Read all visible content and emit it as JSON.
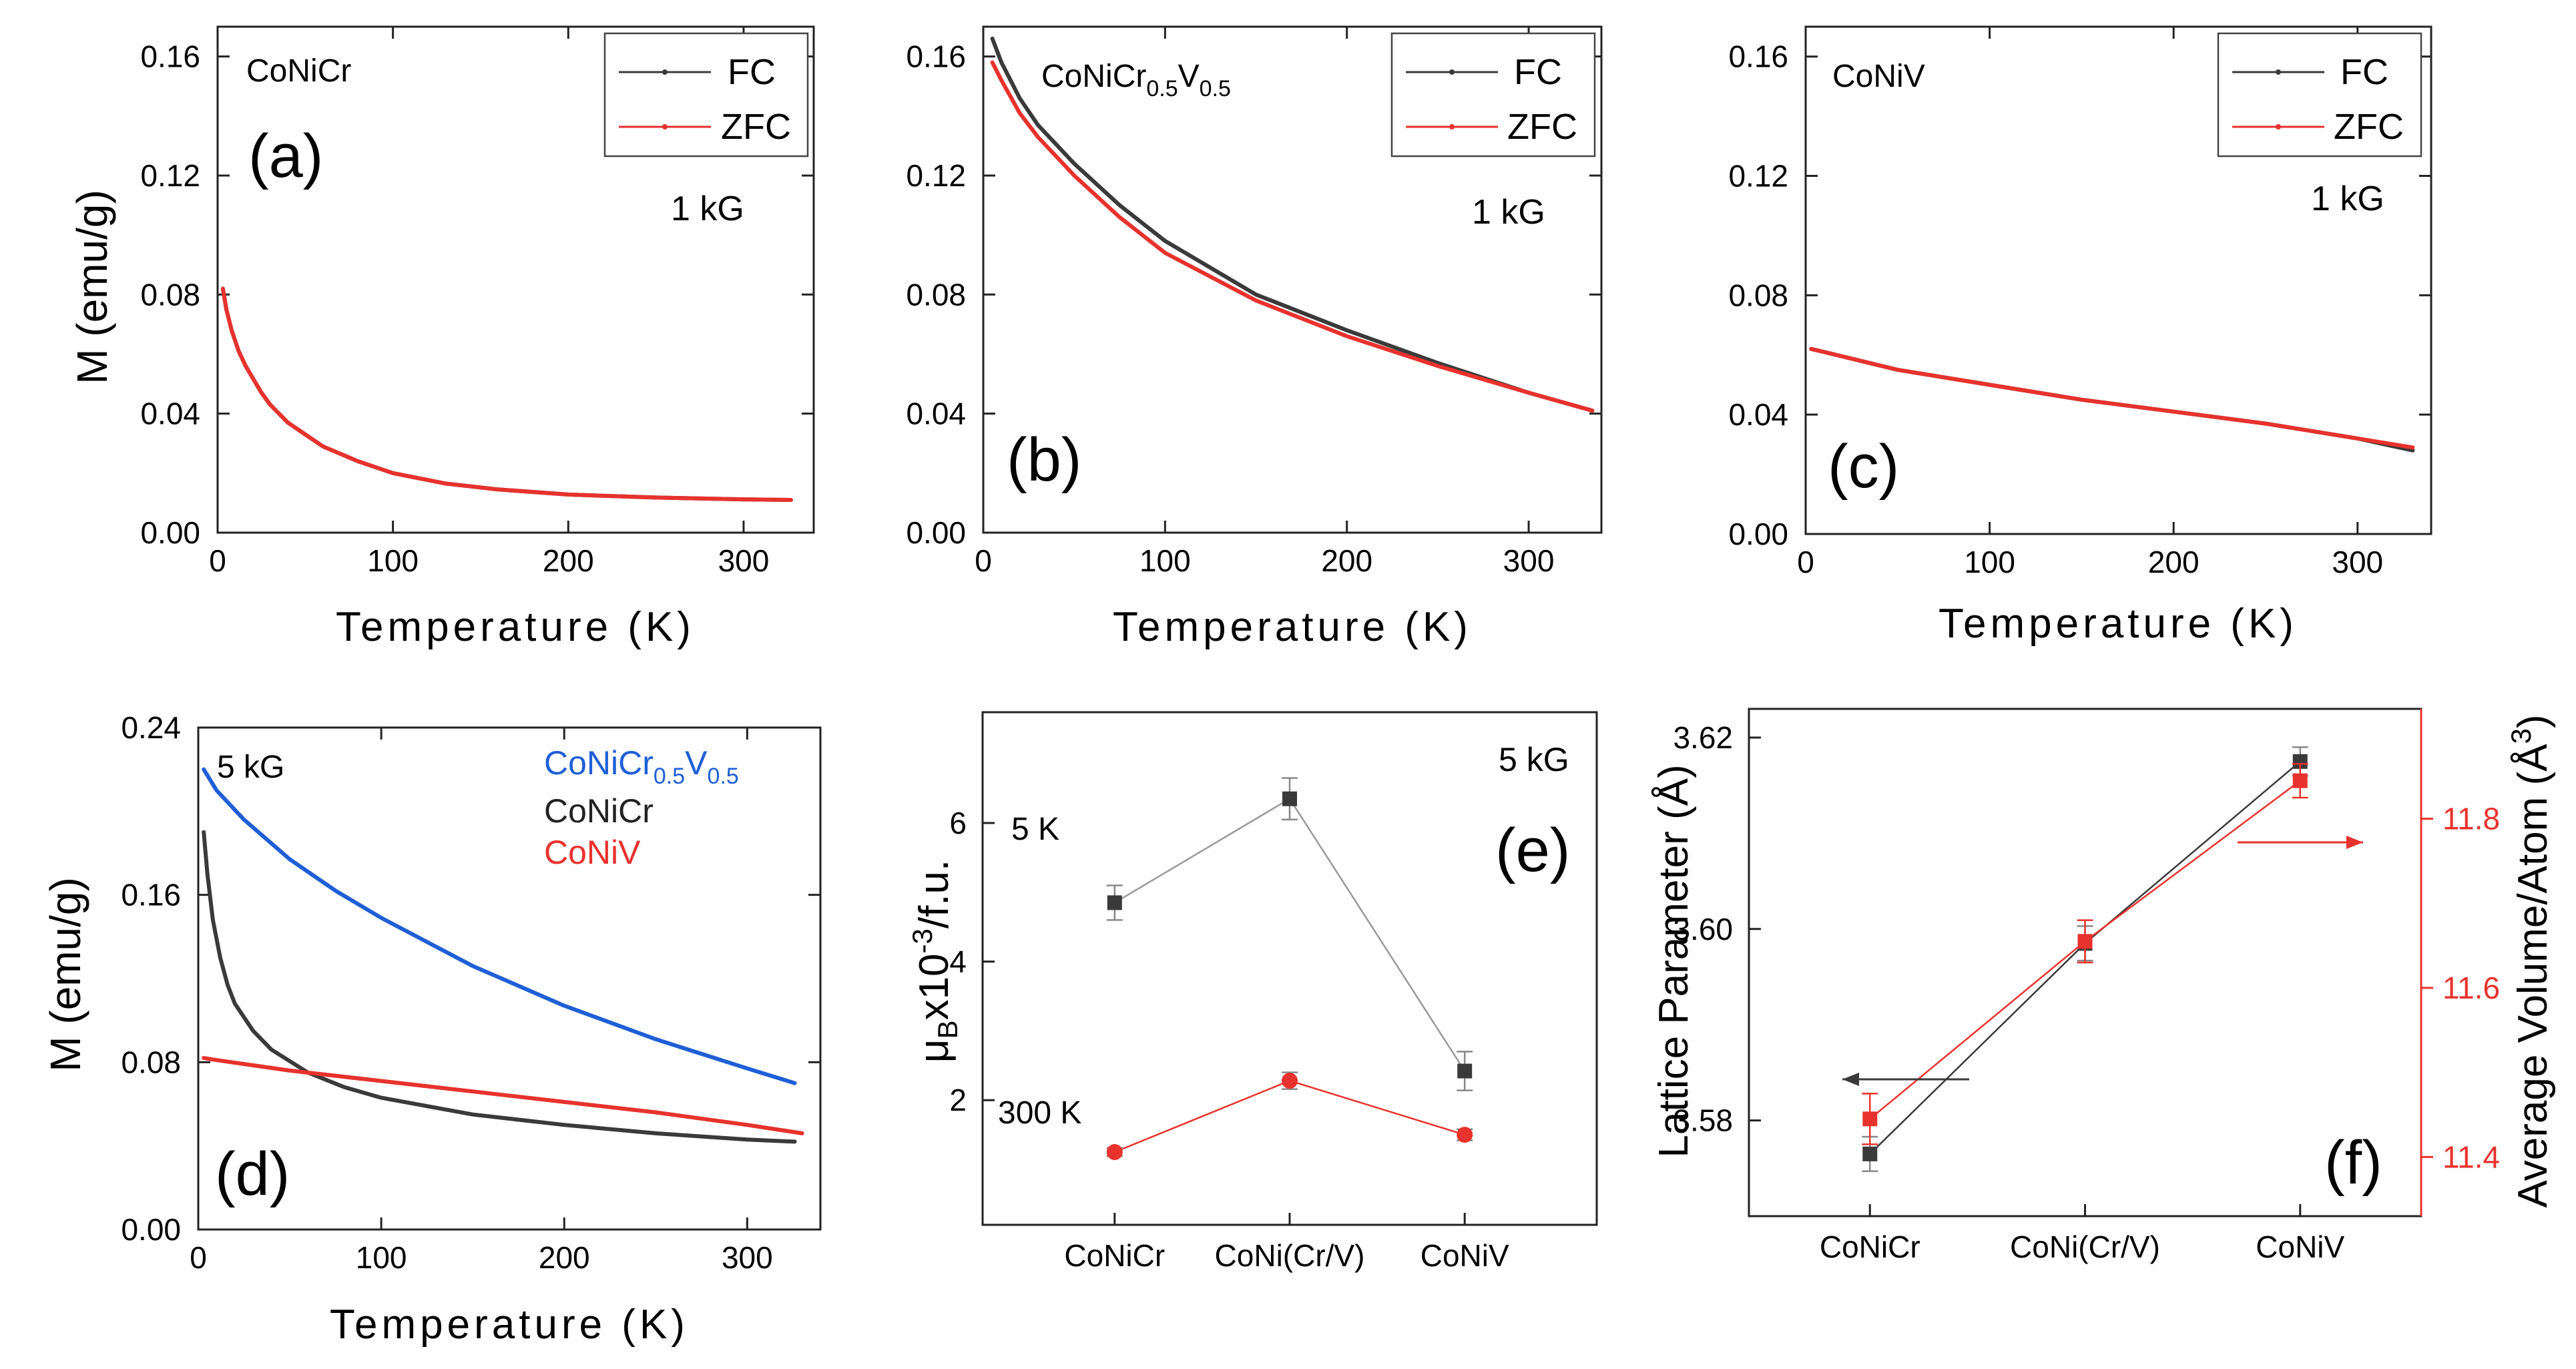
{
  "chart_data": [
    {
      "id": "a",
      "type": "line",
      "panel_label": "(a)",
      "sample": "CoNiCr",
      "field": "1 kG",
      "xlabel": "Temperature (K)",
      "ylabel": "M (emu/g)",
      "xlim": [
        0,
        340
      ],
      "ylim": [
        0,
        0.17
      ],
      "xticks": [
        "0",
        "100",
        "200",
        "300"
      ],
      "yticks": [
        "0.00",
        "0.04",
        "0.08",
        "0.12",
        "0.16"
      ],
      "legend": [
        "FC",
        "ZFC"
      ],
      "series": [
        {
          "name": "FC",
          "color": "#3a3a3a",
          "x": [
            3,
            5,
            8,
            12,
            16,
            20,
            25,
            30,
            40,
            50,
            60,
            80,
            100,
            130,
            160,
            200,
            250,
            300,
            327
          ],
          "y": [
            0.082,
            0.075,
            0.068,
            0.061,
            0.056,
            0.052,
            0.047,
            0.043,
            0.037,
            0.033,
            0.029,
            0.024,
            0.02,
            0.0165,
            0.0145,
            0.0128,
            0.0118,
            0.0112,
            0.011
          ]
        },
        {
          "name": "ZFC",
          "color": "#e8322d",
          "x": [
            3,
            5,
            8,
            12,
            16,
            20,
            25,
            30,
            40,
            50,
            60,
            80,
            100,
            130,
            160,
            200,
            250,
            300,
            327
          ],
          "y": [
            0.082,
            0.075,
            0.068,
            0.061,
            0.056,
            0.052,
            0.047,
            0.043,
            0.037,
            0.033,
            0.029,
            0.024,
            0.02,
            0.0165,
            0.0145,
            0.0128,
            0.0118,
            0.0112,
            0.011
          ]
        }
      ]
    },
    {
      "id": "b",
      "type": "line",
      "panel_label": "(b)",
      "sample": "CoNiCr",
      "sample_sub1": "0.5",
      "sample_mid": "V",
      "sample_sub2": "0.5",
      "field": "1 kG",
      "xlabel": "Temperature (K)",
      "ylabel": "",
      "xlim": [
        0,
        340
      ],
      "ylim": [
        0,
        0.17
      ],
      "xticks": [
        "0",
        "100",
        "200",
        "300"
      ],
      "yticks": [
        "0.00",
        "0.04",
        "0.08",
        "0.12",
        "0.16"
      ],
      "legend": [
        "FC",
        "ZFC"
      ],
      "series": [
        {
          "name": "FC",
          "color": "#3a3a3a",
          "x": [
            5,
            10,
            20,
            30,
            50,
            75,
            100,
            150,
            200,
            250,
            300,
            335
          ],
          "y": [
            0.166,
            0.158,
            0.146,
            0.137,
            0.124,
            0.11,
            0.098,
            0.08,
            0.068,
            0.057,
            0.047,
            0.041
          ]
        },
        {
          "name": "ZFC",
          "color": "#e8322d",
          "x": [
            5,
            10,
            20,
            30,
            50,
            75,
            100,
            150,
            200,
            250,
            300,
            335
          ],
          "y": [
            0.158,
            0.152,
            0.141,
            0.133,
            0.12,
            0.106,
            0.094,
            0.078,
            0.066,
            0.056,
            0.047,
            0.041
          ]
        }
      ]
    },
    {
      "id": "c",
      "type": "line",
      "panel_label": "(c)",
      "sample": "CoNiV",
      "field": "1 kG",
      "xlabel": "Temperature (K)",
      "ylabel": "",
      "xlim": [
        0,
        340
      ],
      "ylim": [
        0,
        0.17
      ],
      "xticks": [
        "0",
        "100",
        "200",
        "300"
      ],
      "yticks": [
        "0.00",
        "0.04",
        "0.08",
        "0.12",
        "0.16"
      ],
      "legend": [
        "FC",
        "ZFC"
      ],
      "series": [
        {
          "name": "FC",
          "color": "#3a3a3a",
          "x": [
            3,
            10,
            30,
            50,
            100,
            150,
            200,
            250,
            300,
            330
          ],
          "y": [
            0.062,
            0.061,
            0.058,
            0.055,
            0.05,
            0.045,
            0.041,
            0.037,
            0.032,
            0.028
          ]
        },
        {
          "name": "ZFC",
          "color": "#e8322d",
          "x": [
            3,
            10,
            30,
            50,
            100,
            150,
            200,
            250,
            300,
            330
          ],
          "y": [
            0.062,
            0.061,
            0.058,
            0.055,
            0.05,
            0.045,
            0.041,
            0.037,
            0.032,
            0.029
          ]
        }
      ]
    },
    {
      "id": "d",
      "type": "line",
      "panel_label": "(d)",
      "field": "5 kG",
      "xlabel": "Temperature (K)",
      "ylabel": "M (emu/g)",
      "xlim": [
        0,
        340
      ],
      "ylim": [
        0,
        0.24
      ],
      "xticks": [
        "0",
        "100",
        "200",
        "300"
      ],
      "yticks": [
        "0.00",
        "0.08",
        "0.16",
        "0.24"
      ],
      "legend_main": [
        "CoNiCr",
        "CoNiCr",
        "CoNiV"
      ],
      "legend_sub1": "0.5",
      "legend_mid": "V",
      "legend_sub2": "0.5",
      "series": [
        {
          "name": "CoNiCr0.5V0.5",
          "color": "#1f5fd6",
          "x": [
            3,
            10,
            25,
            50,
            75,
            100,
            150,
            200,
            250,
            300,
            326
          ],
          "y": [
            0.22,
            0.21,
            0.196,
            0.177,
            0.162,
            0.149,
            0.126,
            0.107,
            0.091,
            0.077,
            0.07
          ]
        },
        {
          "name": "CoNiCr",
          "color": "#3a3a3a",
          "x": [
            3,
            5,
            8,
            12,
            16,
            20,
            30,
            40,
            60,
            80,
            100,
            150,
            200,
            250,
            300,
            326
          ],
          "y": [
            0.19,
            0.17,
            0.148,
            0.13,
            0.117,
            0.108,
            0.095,
            0.086,
            0.075,
            0.068,
            0.063,
            0.055,
            0.05,
            0.046,
            0.043,
            0.042
          ]
        },
        {
          "name": "CoNiV",
          "color": "#e8322d",
          "x": [
            3,
            10,
            50,
            100,
            150,
            200,
            250,
            300,
            330
          ],
          "y": [
            0.082,
            0.081,
            0.076,
            0.071,
            0.066,
            0.061,
            0.056,
            0.05,
            0.046
          ]
        }
      ]
    },
    {
      "id": "e",
      "type": "line",
      "panel_label": "(e)",
      "field": "5 kG",
      "ylabel_mu": "μ",
      "ylabel_sub": "B",
      "ylabel_x": "x10",
      "ylabel_sup": "-3",
      "ylabel_tail": "/f.u.",
      "categories": [
        "CoNiCr",
        "CoNi(Cr/V)",
        "CoNiV"
      ],
      "ylim": [
        0.2,
        7.6
      ],
      "yticks": [
        "2",
        "4",
        "6"
      ],
      "series": [
        {
          "name": "5 K",
          "color": "#3a3a3a",
          "values": [
            4.85,
            6.35,
            2.42
          ],
          "errors": [
            0.25,
            0.3,
            0.28
          ]
        },
        {
          "name": "300 K",
          "color": "#e8322d",
          "values": [
            1.25,
            2.28,
            1.5
          ],
          "errors": [
            0.06,
            0.12,
            0.08
          ]
        }
      ]
    },
    {
      "id": "f",
      "type": "line",
      "panel_label": "(f)",
      "categories": [
        "CoNiCr",
        "CoNi(Cr/V)",
        "CoNiV"
      ],
      "ylabel_left": "Lattice Parameter (Å)",
      "ylabel_right_main": "Average Volume/Atom (Å",
      "ylabel_right_sup": "3",
      "ylabel_right_close": ")",
      "ylim_left": [
        3.57,
        3.623
      ],
      "yticks_left": [
        "3.58",
        "3.60",
        "3.62"
      ],
      "ylim_right": [
        11.33,
        11.93
      ],
      "yticks_right": [
        "11.4",
        "11.6",
        "11.8"
      ],
      "series": [
        {
          "name": "Lattice Parameter",
          "axis": "left",
          "color": "#3a3a3a",
          "values": [
            3.5765,
            3.5985,
            3.6175
          ],
          "errors": [
            0.0018,
            0.0018,
            0.0015
          ]
        },
        {
          "name": "Average Volume/Atom",
          "axis": "right",
          "color": "#e8322d",
          "values": [
            11.445,
            11.655,
            11.845
          ],
          "errors": [
            0.03,
            0.025,
            0.02
          ]
        }
      ]
    }
  ]
}
